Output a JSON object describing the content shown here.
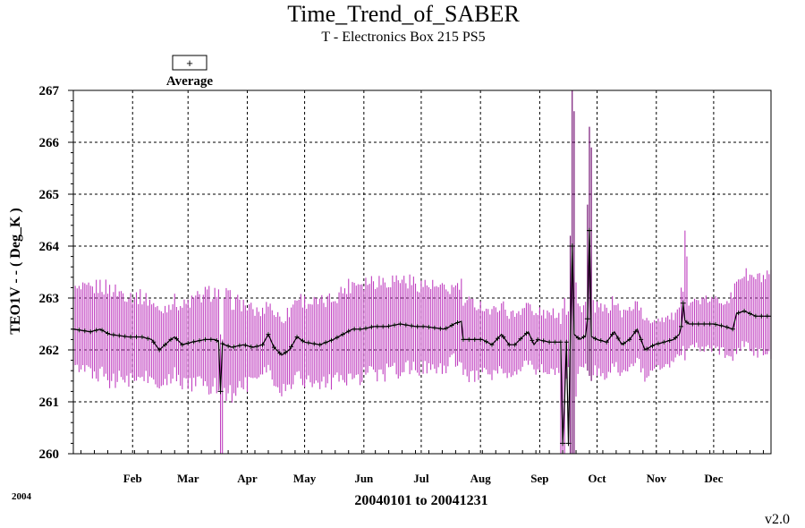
{
  "title": "Time_Trend_of_SABER",
  "subtitle": "T - Electronics Box 215 PS5",
  "legend": {
    "symbol": "+",
    "label": "Average"
  },
  "ylabel": "TEO1V  - - ( Deg_K )",
  "xlabel": "20040101 to 20041231",
  "year": "2004",
  "version": "v2.0",
  "colors": {
    "range_bars": "#c040c0",
    "range_bars_dark": "#6a006a",
    "average_line": "#000000"
  },
  "chart_data": {
    "type": "line",
    "title": "Time_Trend_of_SABER",
    "subtitle": "T - Electronics Box 215 PS5",
    "xlabel": "20040101 to 20041231",
    "ylabel": "TEO1V  - - ( Deg_K )",
    "ylim": [
      260,
      267
    ],
    "xlim": [
      1,
      366
    ],
    "yticks": [
      260,
      261,
      262,
      263,
      264,
      265,
      266,
      267
    ],
    "x_tick_labels": [
      "Feb",
      "Mar",
      "Apr",
      "May",
      "Jun",
      "Jul",
      "Aug",
      "Sep",
      "Oct",
      "Nov",
      "Dec"
    ],
    "x_tick_days": [
      32,
      61,
      92,
      122,
      153,
      183,
      214,
      245,
      275,
      306,
      336
    ],
    "grid": true,
    "legend_position": "top-left",
    "series": [
      {
        "name": "Average",
        "style": "average line with + markers and min-max range bars",
        "average_keyframes": [
          [
            1,
            262.4
          ],
          [
            10,
            262.35
          ],
          [
            15,
            262.4
          ],
          [
            20,
            262.3
          ],
          [
            30,
            262.25
          ],
          [
            37,
            262.25
          ],
          [
            42,
            262.2
          ],
          [
            46,
            262.0
          ],
          [
            52,
            262.2
          ],
          [
            54,
            262.25
          ],
          [
            58,
            262.1
          ],
          [
            63,
            262.15
          ],
          [
            70,
            262.2
          ],
          [
            75,
            262.2
          ],
          [
            80,
            262.1
          ],
          [
            84,
            262.05
          ],
          [
            90,
            262.1
          ],
          [
            95,
            262.05
          ],
          [
            100,
            262.1
          ],
          [
            103,
            262.3
          ],
          [
            106,
            262.05
          ],
          [
            110,
            261.9
          ],
          [
            114,
            262.0
          ],
          [
            118,
            262.25
          ],
          [
            122,
            262.15
          ],
          [
            130,
            262.1
          ],
          [
            137,
            262.2
          ],
          [
            142,
            262.3
          ],
          [
            147,
            262.4
          ],
          [
            152,
            262.4
          ],
          [
            158,
            262.45
          ],
          [
            165,
            262.45
          ],
          [
            172,
            262.5
          ],
          [
            180,
            262.45
          ],
          [
            185,
            262.45
          ],
          [
            195,
            262.4
          ],
          [
            198,
            262.45
          ],
          [
            200,
            262.5
          ],
          [
            204,
            262.55
          ],
          [
            205,
            262.2
          ],
          [
            210,
            262.2
          ],
          [
            215,
            262.2
          ],
          [
            220,
            262.1
          ],
          [
            225,
            262.3
          ],
          [
            229,
            262.1
          ],
          [
            232,
            262.1
          ],
          [
            236,
            262.25
          ],
          [
            239,
            262.35
          ],
          [
            242,
            262.1
          ],
          [
            244,
            262.2
          ],
          [
            250,
            262.15
          ],
          [
            256,
            262.15
          ],
          [
            258,
            262.1
          ],
          [
            260,
            262.2
          ],
          [
            263,
            262.3
          ],
          [
            266,
            262.2
          ],
          [
            270,
            262.3
          ],
          [
            275,
            262.2
          ],
          [
            280,
            262.15
          ],
          [
            284,
            262.35
          ],
          [
            288,
            262.1
          ],
          [
            292,
            262.2
          ],
          [
            296,
            262.4
          ],
          [
            300,
            262.0
          ],
          [
            305,
            262.1
          ],
          [
            310,
            262.15
          ],
          [
            315,
            262.2
          ],
          [
            318,
            262.3
          ],
          [
            320,
            262.6
          ],
          [
            323,
            262.5
          ],
          [
            330,
            262.5
          ],
          [
            336,
            262.5
          ],
          [
            342,
            262.45
          ],
          [
            346,
            262.4
          ],
          [
            348,
            262.7
          ],
          [
            352,
            262.75
          ],
          [
            355,
            262.7
          ],
          [
            358,
            262.65
          ],
          [
            366,
            262.65
          ]
        ],
        "range_half_width_keyframes": [
          [
            1,
            0.85
          ],
          [
            20,
            1.0
          ],
          [
            40,
            0.85
          ],
          [
            55,
            0.8
          ],
          [
            70,
            1.0
          ],
          [
            80,
            1.1
          ],
          [
            100,
            0.7
          ],
          [
            120,
            0.9
          ],
          [
            135,
            0.9
          ],
          [
            150,
            1.05
          ],
          [
            170,
            1.0
          ],
          [
            190,
            0.9
          ],
          [
            200,
            0.8
          ],
          [
            210,
            0.8
          ],
          [
            220,
            0.7
          ],
          [
            235,
            0.65
          ],
          [
            250,
            0.6
          ],
          [
            258,
            0.7
          ],
          [
            270,
            0.7
          ],
          [
            285,
            0.7
          ],
          [
            300,
            0.6
          ],
          [
            315,
            0.5
          ],
          [
            325,
            0.5
          ],
          [
            340,
            0.55
          ],
          [
            350,
            0.8
          ],
          [
            366,
            0.85
          ]
        ],
        "spikes": [
          {
            "day": 78,
            "min": 260.0,
            "max": 262.3
          },
          {
            "day": 79,
            "min": 260.0,
            "max": 262.2
          },
          {
            "day": 256,
            "min": 260.0,
            "max": 262.5
          },
          {
            "day": 257,
            "min": 260.0,
            "max": 262.8
          },
          {
            "day": 258,
            "min": 260.0,
            "max": 263.0
          },
          {
            "day": 261,
            "min": 260.0,
            "max": 264.2
          },
          {
            "day": 262,
            "min": 260.0,
            "max": 267.0
          },
          {
            "day": 263,
            "min": 260.0,
            "max": 266.6
          },
          {
            "day": 264,
            "min": 261.1,
            "max": 263.3
          },
          {
            "day": 270,
            "min": 261.6,
            "max": 264.8
          },
          {
            "day": 271,
            "min": 261.5,
            "max": 266.3
          },
          {
            "day": 272,
            "min": 261.4,
            "max": 265.9
          },
          {
            "day": 319,
            "min": 261.9,
            "max": 263.2
          },
          {
            "day": 321,
            "min": 261.8,
            "max": 264.3
          },
          {
            "day": 322,
            "min": 262.0,
            "max": 263.8
          }
        ],
        "average_outliers": [
          {
            "day": 78,
            "value": 261.2
          },
          {
            "day": 257,
            "value": 260.2
          },
          {
            "day": 258,
            "value": 261.0
          },
          {
            "day": 260,
            "value": 260.2
          },
          {
            "day": 262,
            "value": 264.0
          },
          {
            "day": 270,
            "value": 262.6
          },
          {
            "day": 271,
            "value": 264.3
          },
          {
            "day": 320,
            "value": 262.9
          }
        ]
      }
    ]
  }
}
